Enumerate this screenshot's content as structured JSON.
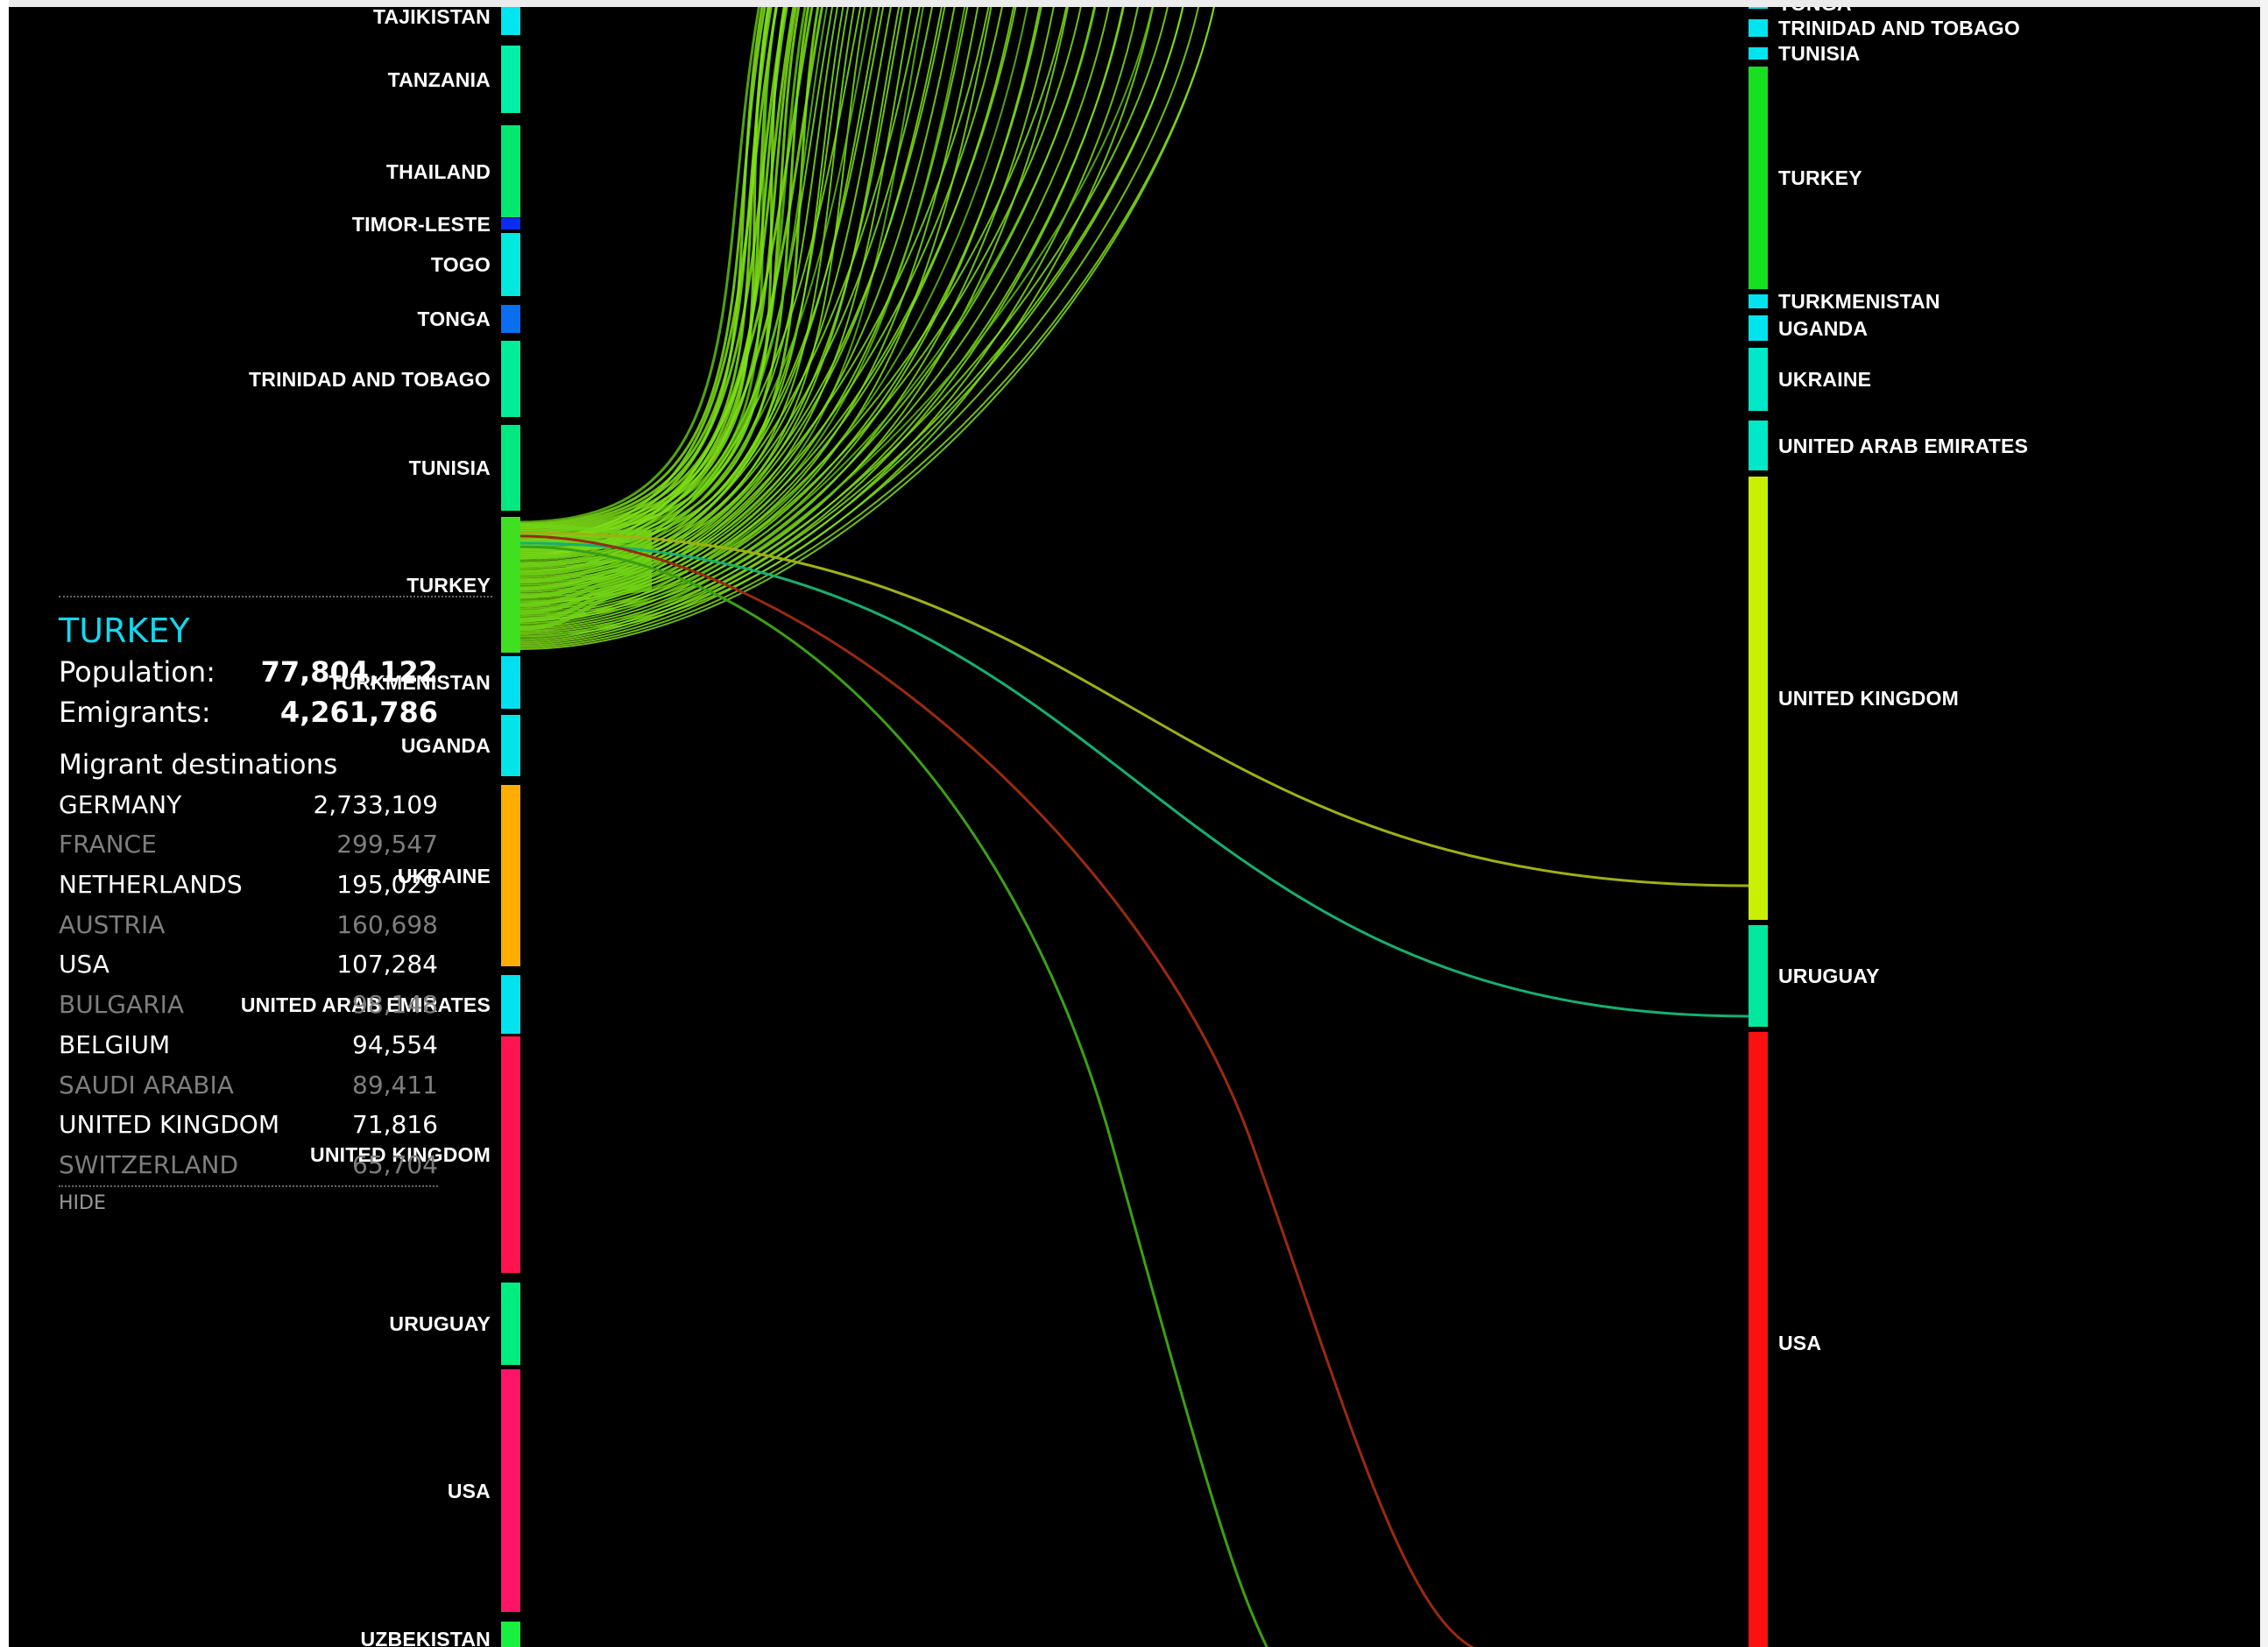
{
  "colors": {
    "background": "#000000",
    "panel_title": "#13d7ee",
    "flow_main": "#7fe017"
  },
  "left_nodes": [
    {
      "label": "TAJIKISTAN",
      "color": "#00e6f0"
    },
    {
      "label": "TANZANIA",
      "color": "#00f0a8"
    },
    {
      "label": "THAILAND",
      "color": "#00e870"
    },
    {
      "label": "TIMOR-LESTE",
      "color": "#0a2cf0"
    },
    {
      "label": "TOGO",
      "color": "#00eae0"
    },
    {
      "label": "TONGA",
      "color": "#0a6ef0"
    },
    {
      "label": "TRINIDAD AND TOBAGO",
      "color": "#00ee9a"
    },
    {
      "label": "TUNISIA",
      "color": "#00e880"
    },
    {
      "label": "TURKEY",
      "color": "#3ee020"
    },
    {
      "label": "TURKMENISTAN",
      "color": "#00e0f0"
    },
    {
      "label": "UGANDA",
      "color": "#00e6e8"
    },
    {
      "label": "UKRAINE",
      "color": "#ffae00"
    },
    {
      "label": "UNITED ARAB EMIRATES",
      "color": "#00e4f0"
    },
    {
      "label": "UNITED KINGDOM",
      "color": "#ff1450"
    },
    {
      "label": "URUGUAY",
      "color": "#00ee80"
    },
    {
      "label": "USA",
      "color": "#ff1468"
    },
    {
      "label": "UZBEKISTAN",
      "color": "#18f040"
    }
  ],
  "right_nodes": [
    {
      "label": "TONGA",
      "color": "#00e4f0"
    },
    {
      "label": "TRINIDAD AND TOBAGO",
      "color": "#00e4f0"
    },
    {
      "label": "TUNISIA",
      "color": "#00e4f0"
    },
    {
      "label": "TURKEY",
      "color": "#16e020"
    },
    {
      "label": "TURKMENISTAN",
      "color": "#00e4f0"
    },
    {
      "label": "UGANDA",
      "color": "#00e4f0"
    },
    {
      "label": "UKRAINE",
      "color": "#00e8c8"
    },
    {
      "label": "UNITED ARAB EMIRATES",
      "color": "#00e8c8"
    },
    {
      "label": "UNITED KINGDOM",
      "color": "#c8f000"
    },
    {
      "label": "URUGUAY",
      "color": "#00e8a0"
    },
    {
      "label": "USA",
      "color": "#ff1010"
    }
  ],
  "info": {
    "country": "TURKEY",
    "population_label": "Population:",
    "population": "77,804,122",
    "emigrants_label": "Emigrants:",
    "emigrants": "4,261,786",
    "destinations_heading": "Migrant destinations",
    "destinations": [
      {
        "name": "GERMANY",
        "value": "2,733,109"
      },
      {
        "name": "FRANCE",
        "value": "299,547"
      },
      {
        "name": "NETHERLANDS",
        "value": "195,029"
      },
      {
        "name": "AUSTRIA",
        "value": "160,698"
      },
      {
        "name": "USA",
        "value": "107,284"
      },
      {
        "name": "BULGARIA",
        "value": "98,148"
      },
      {
        "name": "BELGIUM",
        "value": "94,554"
      },
      {
        "name": "SAUDI ARABIA",
        "value": "89,411"
      },
      {
        "name": "UNITED KINGDOM",
        "value": "71,816"
      },
      {
        "name": "SWITZERLAND",
        "value": "65,704"
      }
    ],
    "hide_label": "HIDE"
  }
}
